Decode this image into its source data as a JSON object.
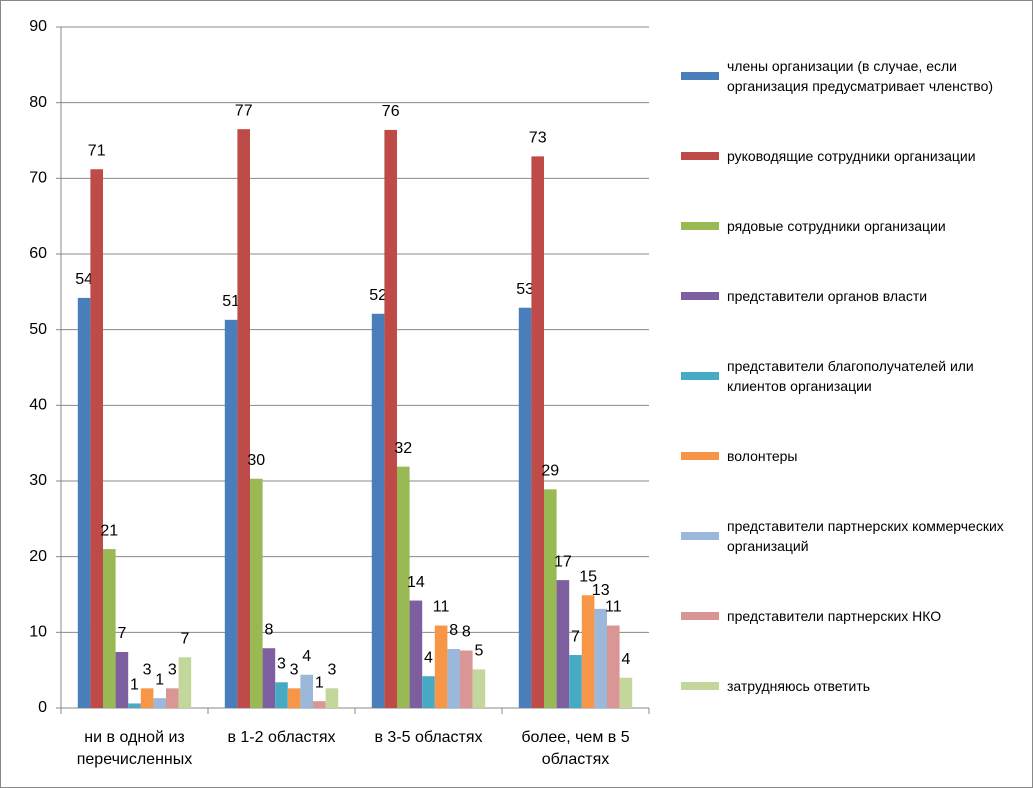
{
  "chart_data": {
    "type": "bar",
    "categories": [
      "ни в одной из перечисленных",
      "в 1-2 областях",
      "в 3-5 областях",
      "более, чем в 5 областях"
    ],
    "series": [
      {
        "name": "члены организации (в случае, если организация предусматривает членство)",
        "color": "#4a7ebb",
        "values": [
          54.2,
          51.3,
          52.1,
          52.9
        ],
        "value_labels": [
          "54",
          "51",
          "52",
          "53"
        ]
      },
      {
        "name": "руководящие сотрудники организации",
        "color": "#be4b48",
        "values": [
          71.2,
          76.5,
          76.4,
          72.9
        ],
        "value_labels": [
          "71",
          "77",
          "76",
          "73"
        ]
      },
      {
        "name": "рядовые сотрудники организации",
        "color": "#98b954",
        "values": [
          21.0,
          30.3,
          31.9,
          28.9
        ],
        "value_labels": [
          "21",
          "30",
          "32",
          "29"
        ]
      },
      {
        "name": "представители органов власти",
        "color": "#7d5fa0",
        "values": [
          7.4,
          7.9,
          14.2,
          16.9
        ],
        "value_labels": [
          "7",
          "8",
          "14",
          "17"
        ]
      },
      {
        "name": "представители благополучателей или клиентов организации",
        "color": "#46aac5",
        "values": [
          0.6,
          3.4,
          4.2,
          7.0
        ],
        "value_labels": [
          "1",
          "3",
          "4",
          "7"
        ]
      },
      {
        "name": "волонтеры",
        "color": "#f79646",
        "values": [
          2.6,
          2.6,
          10.9,
          14.9
        ],
        "value_labels": [
          "3",
          "3",
          "11",
          "15"
        ]
      },
      {
        "name": "представители партнерских коммерческих организаций",
        "color": "#9bb7d9",
        "values": [
          1.3,
          4.4,
          7.8,
          13.1
        ],
        "value_labels": [
          "1",
          "4",
          "8",
          "13"
        ]
      },
      {
        "name": "представители партнерских НКО",
        "color": "#d99694",
        "values": [
          2.6,
          0.9,
          7.6,
          10.9
        ],
        "value_labels": [
          "3",
          "1",
          "8",
          "11"
        ]
      },
      {
        "name": "затрудняюсь ответить",
        "color": "#c3d69b",
        "values": [
          6.7,
          2.6,
          5.1,
          4.0
        ],
        "value_labels": [
          "7",
          "3",
          "5",
          "4"
        ]
      }
    ],
    "ylim": [
      0,
      90
    ],
    "yticks": [
      0,
      10,
      20,
      30,
      40,
      50,
      60,
      70,
      80,
      90
    ],
    "grid": true,
    "legend": "right"
  }
}
